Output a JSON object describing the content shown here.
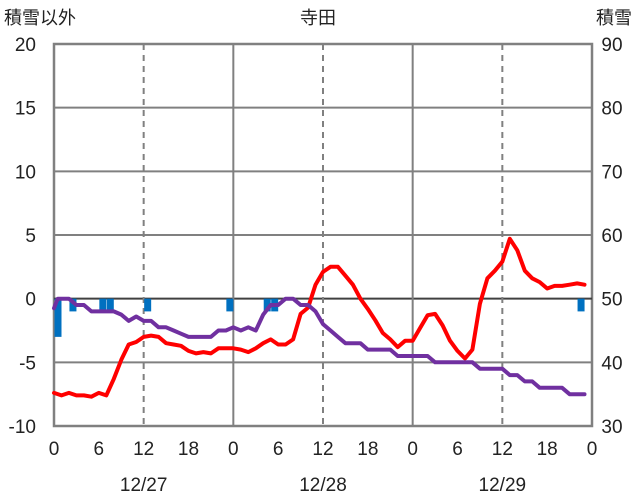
{
  "chart_data": {
    "type": "line",
    "title": "寺田",
    "ylabel": "積雪以外",
    "y2label": "積雪",
    "ylim": [
      -10,
      20
    ],
    "y2lim": [
      30,
      90
    ],
    "yticks": [
      20,
      15,
      10,
      5,
      0,
      -5,
      -10
    ],
    "y2ticks": [
      90,
      80,
      70,
      60,
      50,
      40,
      30
    ],
    "xlim": [
      0,
      72
    ],
    "xtick_labels": [
      "0",
      "6",
      "12",
      "18",
      "0",
      "6",
      "12",
      "18",
      "0",
      "6",
      "12",
      "18",
      "0"
    ],
    "date_labels": [
      {
        "x": 12,
        "text": "12/27"
      },
      {
        "x": 36,
        "text": "12/28"
      },
      {
        "x": 60,
        "text": "12/29"
      }
    ],
    "grid": true,
    "colors": {
      "temperature": "#ff0000",
      "snow_depth": "#7030a0",
      "precipitation": "#0070c0",
      "axis": "#808080"
    },
    "series": [
      {
        "name": "",
        "axis": "left",
        "color": "#ff0000",
        "x": [
          0,
          1,
          2,
          3,
          4,
          5,
          6,
          7,
          8,
          9,
          10,
          11,
          12,
          13,
          14,
          15,
          16,
          17,
          18,
          19,
          20,
          21,
          22,
          23,
          24,
          25,
          26,
          27,
          28,
          29,
          30,
          31,
          32,
          33,
          34,
          35,
          36,
          37,
          38,
          39,
          40,
          41,
          42,
          43,
          44,
          45,
          46,
          47,
          48,
          49,
          50,
          51,
          52,
          53,
          54,
          55,
          56,
          57,
          58,
          59,
          60,
          61,
          62,
          63,
          64,
          65,
          66,
          67,
          68,
          69,
          70,
          71
        ],
        "y": [
          -7.4,
          -7.6,
          -7.4,
          -7.6,
          -7.6,
          -7.7,
          -7.4,
          -7.6,
          -6.3,
          -4.8,
          -3.6,
          -3.4,
          -3.0,
          -2.9,
          -3.0,
          -3.5,
          -3.6,
          -3.7,
          -4.1,
          -4.3,
          -4.2,
          -4.3,
          -3.9,
          -3.9,
          -3.9,
          -4.0,
          -4.2,
          -3.9,
          -3.5,
          -3.2,
          -3.6,
          -3.6,
          -3.2,
          -1.2,
          -0.7,
          1.1,
          2.1,
          2.5,
          2.5,
          1.8,
          1.1,
          0,
          -0.8,
          -1.7,
          -2.7,
          -3.2,
          -3.8,
          -3.3,
          -3.3,
          -2.3,
          -1.3,
          -1.2,
          -2.1,
          -3.3,
          -4.1,
          -4.7,
          -4.0,
          -0.4,
          1.6,
          2.2,
          2.9,
          4.7,
          3.8,
          2.2,
          1.6,
          1.3,
          0.8,
          1.0,
          1.0,
          1.1,
          1.2,
          1.1
        ]
      },
      {
        "name": "",
        "axis": "right",
        "color": "#7030a0",
        "x": [
          0,
          0.5,
          1,
          2,
          3,
          4,
          5,
          6,
          7,
          8,
          9,
          10,
          11,
          12,
          13,
          14,
          15,
          16,
          17,
          18,
          19,
          20,
          21,
          22,
          23,
          24,
          25,
          26,
          27,
          28,
          29,
          30,
          31,
          32,
          33,
          34,
          35,
          36,
          37,
          38,
          39,
          40,
          41,
          42,
          43,
          44,
          45,
          46,
          47,
          48,
          49,
          50,
          51,
          52,
          53,
          54,
          55,
          56,
          57,
          58,
          59,
          60,
          61,
          62,
          63,
          64,
          65,
          66,
          67,
          68,
          69,
          70,
          71
        ],
        "y": [
          48.5,
          50,
          50,
          50,
          49,
          49,
          48,
          48,
          48,
          48,
          47.5,
          46.5,
          47.2,
          46.5,
          46.5,
          45.5,
          45.5,
          45,
          44.5,
          44,
          44,
          44,
          44,
          45,
          45,
          45.5,
          45,
          45.5,
          45,
          47.5,
          49,
          49,
          50,
          50,
          49,
          49,
          48,
          46,
          45,
          44,
          43,
          43,
          43,
          42,
          42,
          42,
          42,
          41,
          41,
          41,
          41,
          41,
          40,
          40,
          40,
          40,
          40,
          40,
          39,
          39,
          39,
          39,
          38,
          38,
          37,
          37,
          36,
          36,
          36,
          36,
          35,
          35,
          35
        ]
      },
      {
        "name": "",
        "type": "bar",
        "axis": "left",
        "color": "#0070c0",
        "x": [
          0,
          2,
          6,
          7,
          12,
          23,
          28,
          29
        ],
        "y": [
          -3.0,
          -1.0,
          -1.0,
          -1.0,
          -1.0,
          -1.0,
          -1.0,
          -1.0
        ]
      },
      {
        "name": "",
        "type": "bar",
        "axis": "left",
        "color": "#0070c0",
        "x": [
          70
        ],
        "y": [
          -1.0
        ]
      }
    ]
  }
}
